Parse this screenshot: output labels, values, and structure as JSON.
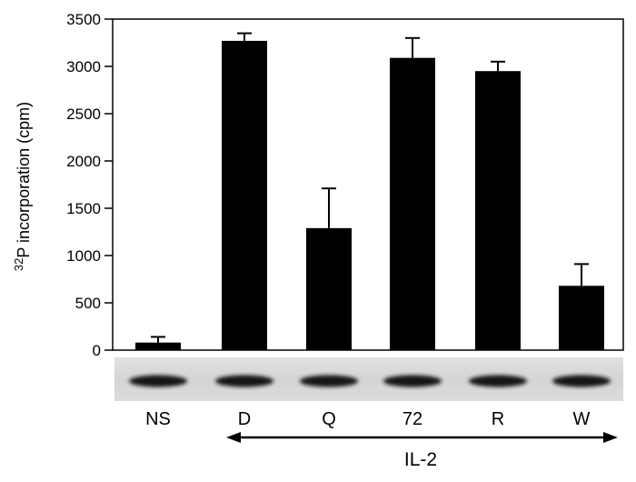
{
  "chart_data": {
    "type": "bar",
    "categories": [
      "NS",
      "D",
      "Q",
      "72",
      "R",
      "W"
    ],
    "series": [
      {
        "values": [
          80,
          3270,
          1290,
          3090,
          2950,
          680
        ],
        "error_plus": [
          60,
          80,
          420,
          210,
          100,
          230
        ]
      }
    ],
    "ylabel_sup": "32",
    "ylabel": "P incorporation (cpm)",
    "ylim": [
      0,
      3500
    ],
    "yticks": [
      0,
      500,
      1000,
      1500,
      2000,
      2500,
      3000,
      3500
    ],
    "ytick_labels": [
      "0",
      "500",
      "1000",
      "1500",
      "2000",
      "2500",
      "3000",
      "3500"
    ],
    "grid": false,
    "legend": "none",
    "bar_color": "#000000",
    "blot_strip": true,
    "group_bracket": {
      "label": "IL-2",
      "from_category": "D",
      "to_category": "W"
    }
  }
}
